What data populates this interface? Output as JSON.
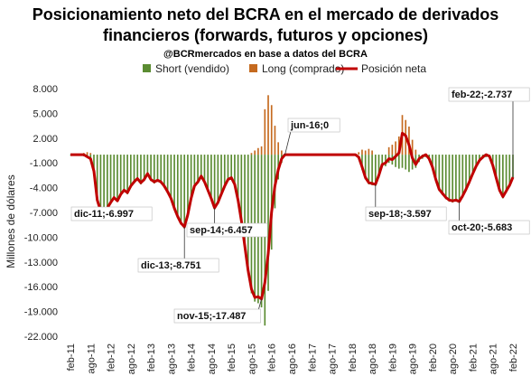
{
  "chart_data": {
    "type": "bar",
    "title_line1": "Posicionamiento neto del BCRA en el mercado de derivados",
    "title_line2": "financieros (forwards, futuros y opciones)",
    "subtitle": "@BCRmercados en base a datos del BCRA",
    "ylabel": "Millones de dólares",
    "ylim": [
      -22000,
      8000
    ],
    "yticks": [
      8000,
      5000,
      2000,
      -1000,
      -4000,
      -7000,
      -10000,
      -13000,
      -16000,
      -19000,
      -22000
    ],
    "ytick_labels": [
      "8.000",
      "5.000",
      "2.000",
      "-1.000",
      "-4.000",
      "-7.000",
      "-10.000",
      "-13.000",
      "-16.000",
      "-19.000",
      "-22.000"
    ],
    "xtick_labels": [
      "feb-11",
      "ago-11",
      "feb-12",
      "ago-12",
      "feb-13",
      "ago-13",
      "feb-14",
      "ago-14",
      "feb-15",
      "ago-15",
      "feb-16",
      "ago-16",
      "feb-17",
      "ago-17",
      "feb-18",
      "ago-18",
      "feb-19",
      "ago-19",
      "feb-20",
      "ago-20",
      "feb-21",
      "ago-21",
      "feb-22"
    ],
    "legend": [
      {
        "name": "Short (vendido)",
        "color": "#5b8c32"
      },
      {
        "name": "Long (comprado)",
        "color": "#c56a1f"
      },
      {
        "name": "Posición neta",
        "color": "#c00000"
      }
    ],
    "net": [
      [
        "2011-02",
        0
      ],
      [
        "2011-06",
        0
      ],
      [
        "2011-08",
        -500
      ],
      [
        "2011-09",
        -2000
      ],
      [
        "2011-10",
        -5500
      ],
      [
        "2011-11",
        -6800
      ],
      [
        "2011-12",
        -6997
      ],
      [
        "2012-01",
        -6500
      ],
      [
        "2012-02",
        -5800
      ],
      [
        "2012-03",
        -5200
      ],
      [
        "2012-04",
        -5600
      ],
      [
        "2012-05",
        -4800
      ],
      [
        "2012-06",
        -4300
      ],
      [
        "2012-07",
        -4600
      ],
      [
        "2012-08",
        -3800
      ],
      [
        "2012-09",
        -3300
      ],
      [
        "2012-10",
        -2900
      ],
      [
        "2012-11",
        -3400
      ],
      [
        "2012-12",
        -3000
      ],
      [
        "2013-01",
        -2300
      ],
      [
        "2013-02",
        -3000
      ],
      [
        "2013-03",
        -3300
      ],
      [
        "2013-04",
        -3100
      ],
      [
        "2013-05",
        -3300
      ],
      [
        "2013-06",
        -3800
      ],
      [
        "2013-07",
        -4500
      ],
      [
        "2013-08",
        -5300
      ],
      [
        "2013-09",
        -6500
      ],
      [
        "2013-10",
        -7500
      ],
      [
        "2013-11",
        -8300
      ],
      [
        "2013-12",
        -8751
      ],
      [
        "2014-01",
        -7300
      ],
      [
        "2014-02",
        -5300
      ],
      [
        "2014-03",
        -3800
      ],
      [
        "2014-04",
        -3300
      ],
      [
        "2014-05",
        -2600
      ],
      [
        "2014-06",
        -3300
      ],
      [
        "2014-07",
        -4300
      ],
      [
        "2014-08",
        -5300
      ],
      [
        "2014-09",
        -6457
      ],
      [
        "2014-10",
        -5800
      ],
      [
        "2014-11",
        -4800
      ],
      [
        "2014-12",
        -3800
      ],
      [
        "2015-01",
        -3000
      ],
      [
        "2015-02",
        -2800
      ],
      [
        "2015-03",
        -3600
      ],
      [
        "2015-04",
        -5500
      ],
      [
        "2015-05",
        -8000
      ],
      [
        "2015-06",
        -11000
      ],
      [
        "2015-07",
        -14000
      ],
      [
        "2015-08",
        -16300
      ],
      [
        "2015-09",
        -17300
      ],
      [
        "2015-10",
        -17200
      ],
      [
        "2015-11",
        -17487
      ],
      [
        "2015-12",
        -15500
      ],
      [
        "2016-01",
        -12000
      ],
      [
        "2016-02",
        -7000
      ],
      [
        "2016-03",
        -3800
      ],
      [
        "2016-04",
        -1800
      ],
      [
        "2016-05",
        -500
      ],
      [
        "2016-06",
        0
      ],
      [
        "2018-03",
        0
      ],
      [
        "2018-04",
        -300
      ],
      [
        "2018-05",
        -1500
      ],
      [
        "2018-06",
        -2800
      ],
      [
        "2018-07",
        -3400
      ],
      [
        "2018-08",
        -3500
      ],
      [
        "2018-09",
        -3597
      ],
      [
        "2018-10",
        -2500
      ],
      [
        "2018-11",
        -1200
      ],
      [
        "2018-12",
        -1000
      ],
      [
        "2019-01",
        -500
      ],
      [
        "2019-02",
        -600
      ],
      [
        "2019-03",
        -200
      ],
      [
        "2019-04",
        200
      ],
      [
        "2019-05",
        2600
      ],
      [
        "2019-06",
        2300
      ],
      [
        "2019-07",
        1200
      ],
      [
        "2019-08",
        -400
      ],
      [
        "2019-09",
        -1200
      ],
      [
        "2019-10",
        -500
      ],
      [
        "2019-11",
        -200
      ],
      [
        "2019-12",
        0
      ],
      [
        "2020-01",
        -500
      ],
      [
        "2020-02",
        -1500
      ],
      [
        "2020-03",
        -3000
      ],
      [
        "2020-04",
        -4200
      ],
      [
        "2020-05",
        -4700
      ],
      [
        "2020-06",
        -5200
      ],
      [
        "2020-07",
        -5500
      ],
      [
        "2020-08",
        -5600
      ],
      [
        "2020-09",
        -5500
      ],
      [
        "2020-10",
        -5683
      ],
      [
        "2020-11",
        -5000
      ],
      [
        "2020-12",
        -4200
      ],
      [
        "2021-01",
        -3300
      ],
      [
        "2021-02",
        -2300
      ],
      [
        "2021-03",
        -1400
      ],
      [
        "2021-04",
        -700
      ],
      [
        "2021-05",
        -300
      ],
      [
        "2021-06",
        0
      ],
      [
        "2021-07",
        -200
      ],
      [
        "2021-08",
        -1300
      ],
      [
        "2021-09",
        -2800
      ],
      [
        "2021-10",
        -4300
      ],
      [
        "2021-11",
        -5100
      ],
      [
        "2021-12",
        -4400
      ],
      [
        "2022-01",
        -3700
      ],
      [
        "2022-02",
        -2737
      ]
    ],
    "short_bars": [
      [
        "2011-02",
        0
      ],
      [
        "2011-06",
        -200
      ],
      [
        "2011-07",
        -300
      ],
      [
        "2011-08",
        -800
      ],
      [
        "2011-09",
        -2500
      ],
      [
        "2011-10",
        -5500
      ],
      [
        "2011-11",
        -6900
      ],
      [
        "2011-12",
        -7100
      ],
      [
        "2012-01",
        -6600
      ],
      [
        "2012-02",
        -6000
      ],
      [
        "2012-03",
        -5400
      ],
      [
        "2012-04",
        -5700
      ],
      [
        "2012-05",
        -5000
      ],
      [
        "2012-06",
        -4500
      ],
      [
        "2012-07",
        -4800
      ],
      [
        "2012-08",
        -4000
      ],
      [
        "2012-09",
        -3500
      ],
      [
        "2012-10",
        -3100
      ],
      [
        "2012-11",
        -3600
      ],
      [
        "2012-12",
        -3200
      ],
      [
        "2013-01",
        -2500
      ],
      [
        "2013-02",
        -3200
      ],
      [
        "2013-03",
        -3500
      ],
      [
        "2013-04",
        -3300
      ],
      [
        "2013-05",
        -3500
      ],
      [
        "2013-06",
        -4000
      ],
      [
        "2013-07",
        -4700
      ],
      [
        "2013-08",
        -5500
      ],
      [
        "2013-09",
        -6700
      ],
      [
        "2013-10",
        -7700
      ],
      [
        "2013-11",
        -8500
      ],
      [
        "2013-12",
        -8950
      ],
      [
        "2014-01",
        -7500
      ],
      [
        "2014-02",
        -5500
      ],
      [
        "2014-03",
        -4000
      ],
      [
        "2014-04",
        -3500
      ],
      [
        "2014-05",
        -2800
      ],
      [
        "2014-06",
        -3500
      ],
      [
        "2014-07",
        -4500
      ],
      [
        "2014-08",
        -5500
      ],
      [
        "2014-09",
        -6650
      ],
      [
        "2014-10",
        -6000
      ],
      [
        "2014-11",
        -5000
      ],
      [
        "2014-12",
        -4000
      ],
      [
        "2015-01",
        -3200
      ],
      [
        "2015-02",
        -3000
      ],
      [
        "2015-03",
        -3800
      ],
      [
        "2015-04",
        -5800
      ],
      [
        "2015-05",
        -8300
      ],
      [
        "2015-06",
        -11500
      ],
      [
        "2015-07",
        -14500
      ],
      [
        "2015-08",
        -16800
      ],
      [
        "2015-09",
        -17800
      ],
      [
        "2015-10",
        -18000
      ],
      [
        "2015-11",
        -18500
      ],
      [
        "2015-12",
        -20700
      ],
      [
        "2016-01",
        -16500
      ],
      [
        "2016-02",
        -11500
      ],
      [
        "2016-03",
        -6500
      ],
      [
        "2016-04",
        -3000
      ],
      [
        "2016-05",
        -1000
      ],
      [
        "2018-05",
        -1800
      ],
      [
        "2018-06",
        -3000
      ],
      [
        "2018-07",
        -3600
      ],
      [
        "2018-08",
        -3700
      ],
      [
        "2018-09",
        -3800
      ],
      [
        "2018-10",
        -2800
      ],
      [
        "2018-11",
        -1500
      ],
      [
        "2018-12",
        -1400
      ],
      [
        "2019-01",
        -1000
      ],
      [
        "2019-02",
        -1200
      ],
      [
        "2019-03",
        -1500
      ],
      [
        "2019-04",
        -1700
      ],
      [
        "2019-05",
        -1600
      ],
      [
        "2019-06",
        -1800
      ],
      [
        "2019-07",
        -2100
      ],
      [
        "2019-08",
        -1800
      ],
      [
        "2019-09",
        -1600
      ],
      [
        "2019-10",
        -900
      ],
      [
        "2019-11",
        -500
      ],
      [
        "2019-12",
        -300
      ],
      [
        "2020-01",
        -700
      ],
      [
        "2020-02",
        -1700
      ],
      [
        "2020-03",
        -3200
      ],
      [
        "2020-04",
        -4400
      ],
      [
        "2020-05",
        -4900
      ],
      [
        "2020-06",
        -5400
      ],
      [
        "2020-07",
        -5700
      ],
      [
        "2020-08",
        -5800
      ],
      [
        "2020-09",
        -5700
      ],
      [
        "2020-10",
        -5850
      ],
      [
        "2020-11",
        -5200
      ],
      [
        "2020-12",
        -4400
      ],
      [
        "2021-01",
        -3500
      ],
      [
        "2021-02",
        -2500
      ],
      [
        "2021-03",
        -1600
      ],
      [
        "2021-04",
        -900
      ],
      [
        "2021-05",
        -500
      ],
      [
        "2021-06",
        -300
      ],
      [
        "2021-07",
        -400
      ],
      [
        "2021-08",
        -1500
      ],
      [
        "2021-09",
        -3000
      ],
      [
        "2021-10",
        -4500
      ],
      [
        "2021-11",
        -5300
      ],
      [
        "2021-12",
        -4600
      ],
      [
        "2022-01",
        -3900
      ],
      [
        "2022-02",
        -2900
      ]
    ],
    "long_bars": [
      [
        "2011-06",
        200
      ],
      [
        "2011-07",
        300
      ],
      [
        "2011-08",
        200
      ],
      [
        "2015-08",
        200
      ],
      [
        "2015-09",
        500
      ],
      [
        "2015-10",
        800
      ],
      [
        "2015-11",
        1000
      ],
      [
        "2015-12",
        5500
      ],
      [
        "2016-01",
        7200
      ],
      [
        "2016-02",
        6000
      ],
      [
        "2016-03",
        3500
      ],
      [
        "2016-04",
        1500
      ],
      [
        "2016-05",
        500
      ],
      [
        "2018-04",
        300
      ],
      [
        "2018-05",
        600
      ],
      [
        "2018-06",
        500
      ],
      [
        "2018-07",
        700
      ],
      [
        "2018-08",
        500
      ],
      [
        "2019-01",
        900
      ],
      [
        "2019-02",
        1200
      ],
      [
        "2019-03",
        1600
      ],
      [
        "2019-04",
        2200
      ],
      [
        "2019-05",
        4800
      ],
      [
        "2019-06",
        4200
      ],
      [
        "2019-07",
        3400
      ],
      [
        "2019-08",
        1800
      ],
      [
        "2019-09",
        600
      ]
    ],
    "annotations": [
      {
        "text": "dic-11;-6.997",
        "date": "2011-12",
        "value": -6997,
        "pos": "below"
      },
      {
        "text": "dic-13;-8.751",
        "date": "2013-12",
        "value": -8751,
        "pos": "below"
      },
      {
        "text": "sep-14;-6.457",
        "date": "2014-09",
        "value": -6457,
        "pos": "right"
      },
      {
        "text": "nov-15;-17.487",
        "date": "2015-11",
        "value": -17487,
        "pos": "below"
      },
      {
        "text": "jun-16;0",
        "date": "2016-06",
        "value": 0,
        "pos": "above"
      },
      {
        "text": "sep-18;-3.597",
        "date": "2018-09",
        "value": -3597,
        "pos": "below"
      },
      {
        "text": "oct-20;-5.683",
        "date": "2020-10",
        "value": -5683,
        "pos": "below"
      },
      {
        "text": "feb-22;-2.737",
        "date": "2022-02",
        "value": -2737,
        "pos": "above"
      }
    ],
    "grid": false,
    "legend_position": "top"
  }
}
